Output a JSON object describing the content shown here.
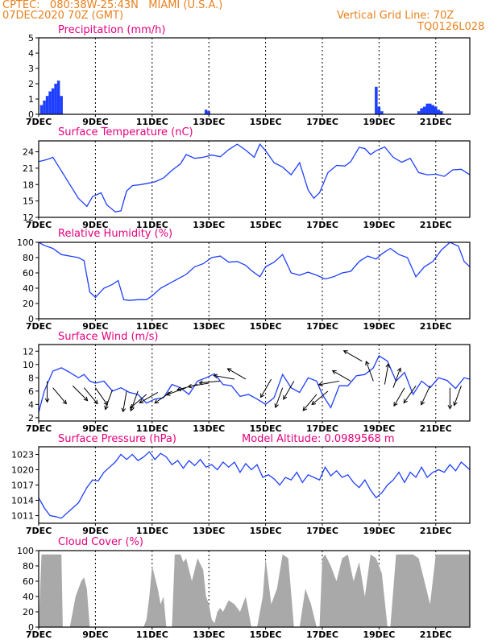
{
  "header": {
    "line1_left": "CPTEC:   080:38W-25:43N   MIAMI (U.S.A.)",
    "line2_left": "07DEC2020 70Z (GMT)",
    "line1_right": "Vertical Grid Line: 70Z",
    "line2_right": "TQ0126L028"
  },
  "colors": {
    "header": "#e8801e",
    "title": "#e6007e",
    "line": "#1f3fff",
    "bar": "#1f3fff",
    "cloud": "#a9a9a9",
    "arrow": "#000000"
  },
  "x_axis": {
    "ticks": [
      "7DEC",
      "9DEC",
      "11DEC",
      "13DEC",
      "15DEC",
      "17DEC",
      "19DEC",
      "21DEC"
    ],
    "tick_days": [
      7,
      9,
      11,
      13,
      15,
      17,
      19,
      21
    ],
    "range": [
      7,
      22.2
    ]
  },
  "chart_data": [
    {
      "id": "precip",
      "type": "bar",
      "title": "Precipitation (mm/h)",
      "ylim": [
        0,
        5
      ],
      "yticks": [
        "0",
        "1",
        "2",
        "3",
        "4",
        "5"
      ],
      "x": [
        7.1,
        7.2,
        7.3,
        7.4,
        7.5,
        7.6,
        7.7,
        7.8,
        12.9,
        13.0,
        18.9,
        19.0,
        19.1,
        20.4,
        20.5,
        20.6,
        20.7,
        20.8,
        20.9,
        21.0,
        21.1,
        21.2
      ],
      "values": [
        0.6,
        0.9,
        1.2,
        1.5,
        1.7,
        2.0,
        2.2,
        1.2,
        0.3,
        0.2,
        1.8,
        0.5,
        0.2,
        0.2,
        0.4,
        0.5,
        0.7,
        0.7,
        0.6,
        0.5,
        0.3,
        0.2
      ]
    },
    {
      "id": "temp",
      "type": "line",
      "title": "Surface Temperature (nC)",
      "ylim": [
        12,
        26
      ],
      "yticks": [
        "12",
        "15",
        "18",
        "21",
        "24"
      ],
      "x": [
        7.0,
        7.3,
        7.5,
        7.8,
        8.1,
        8.4,
        8.7,
        8.9,
        9.2,
        9.4,
        9.7,
        9.9,
        10.1,
        10.3,
        10.6,
        10.9,
        11.1,
        11.4,
        11.7,
        12.0,
        12.2,
        12.5,
        12.8,
        13.1,
        13.4,
        13.7,
        14.0,
        14.3,
        14.6,
        14.8,
        15.0,
        15.3,
        15.6,
        15.9,
        16.2,
        16.5,
        16.7,
        16.9,
        17.2,
        17.5,
        17.8,
        18.0,
        18.3,
        18.5,
        18.7,
        18.9,
        19.2,
        19.5,
        19.8,
        20.1,
        20.4,
        20.7,
        21.0,
        21.3,
        21.6,
        21.9,
        22.2
      ],
      "values": [
        22.2,
        22.6,
        23.0,
        20.5,
        18.0,
        15.5,
        14.0,
        15.8,
        16.5,
        14.3,
        13.0,
        13.2,
        16.8,
        17.8,
        18.0,
        18.3,
        18.5,
        19.2,
        20.6,
        21.8,
        23.5,
        22.8,
        23.0,
        23.4,
        23.1,
        24.4,
        25.4,
        24.3,
        23.0,
        25.4,
        24.2,
        22.0,
        21.2,
        19.8,
        22.0,
        17.0,
        15.5,
        16.5,
        20.2,
        21.5,
        21.4,
        22.2,
        24.8,
        24.6,
        23.5,
        24.2,
        24.9,
        23.0,
        22.1,
        22.8,
        20.2,
        19.8,
        19.9,
        19.5,
        20.7,
        20.8,
        19.8
      ]
    },
    {
      "id": "rh",
      "type": "line",
      "title": "Relative Humidity (%)",
      "ylim": [
        0,
        100
      ],
      "yticks": [
        "0",
        "20",
        "40",
        "60",
        "80",
        "100"
      ],
      "x": [
        7.0,
        7.2,
        7.5,
        7.8,
        8.1,
        8.4,
        8.6,
        8.8,
        9.0,
        9.3,
        9.6,
        9.8,
        10.0,
        10.2,
        10.5,
        10.8,
        11.0,
        11.3,
        11.6,
        11.9,
        12.2,
        12.5,
        12.8,
        13.1,
        13.4,
        13.7,
        14.0,
        14.3,
        14.5,
        14.8,
        15.0,
        15.3,
        15.6,
        15.9,
        16.2,
        16.5,
        16.8,
        17.1,
        17.4,
        17.7,
        18.0,
        18.3,
        18.6,
        18.9,
        19.1,
        19.4,
        19.7,
        20.0,
        20.3,
        20.6,
        20.9,
        21.2,
        21.5,
        21.8,
        22.0,
        22.2
      ],
      "values": [
        100,
        96,
        92,
        84,
        82,
        80,
        76,
        35,
        28,
        40,
        45,
        50,
        25,
        24,
        25,
        25,
        30,
        40,
        46,
        52,
        58,
        68,
        72,
        80,
        82,
        74,
        75,
        70,
        63,
        55,
        68,
        74,
        84,
        60,
        57,
        61,
        57,
        52,
        55,
        60,
        62,
        75,
        82,
        78,
        85,
        92,
        84,
        80,
        55,
        68,
        75,
        90,
        100,
        95,
        75,
        68
      ]
    },
    {
      "id": "wind",
      "type": "line",
      "title": "Surface Wind (m/s)",
      "ylim": [
        1.5,
        13
      ],
      "yticks": [
        "2",
        "4",
        "6",
        "8",
        "10",
        "12"
      ],
      "x": [
        7.0,
        7.2,
        7.5,
        7.8,
        8.1,
        8.4,
        8.6,
        8.8,
        9.0,
        9.3,
        9.6,
        9.9,
        10.2,
        10.5,
        10.8,
        11.1,
        11.4,
        11.7,
        12.0,
        12.3,
        12.6,
        12.9,
        13.2,
        13.5,
        13.8,
        14.1,
        14.4,
        14.7,
        15.0,
        15.3,
        15.6,
        15.9,
        16.2,
        16.5,
        16.8,
        17.0,
        17.3,
        17.6,
        17.9,
        18.2,
        18.5,
        18.8,
        19.0,
        19.3,
        19.6,
        19.9,
        20.2,
        20.5,
        20.8,
        21.1,
        21.4,
        21.7,
        22.0,
        22.2
      ],
      "values": [
        2.8,
        6.0,
        9.0,
        9.5,
        8.8,
        8.0,
        8.5,
        7.5,
        7.2,
        7.5,
        6.0,
        6.5,
        5.8,
        5.5,
        4.2,
        4.8,
        5.0,
        7.0,
        6.5,
        5.5,
        7.5,
        8.0,
        8.6,
        7.0,
        6.8,
        5.2,
        5.5,
        4.8,
        4.0,
        5.0,
        8.5,
        6.5,
        5.8,
        8.0,
        7.5,
        5.5,
        3.5,
        6.8,
        6.8,
        8.3,
        8.5,
        9.5,
        11.3,
        10.5,
        7.5,
        8.8,
        5.5,
        7.5,
        6.5,
        8.0,
        7.6,
        6.4,
        8.0,
        7.8
      ],
      "arrows": [
        {
          "x": 7.3,
          "y": 7.5,
          "dir": 180
        },
        {
          "x": 7.5,
          "y": 6.5,
          "dir": 140
        },
        {
          "x": 8.2,
          "y": 6.8,
          "dir": 135
        },
        {
          "x": 8.6,
          "y": 6.5,
          "dir": 140
        },
        {
          "x": 9.0,
          "y": 6.5,
          "dir": 145
        },
        {
          "x": 9.6,
          "y": 6.2,
          "dir": 200
        },
        {
          "x": 10.1,
          "y": 6.0,
          "dir": 190
        },
        {
          "x": 10.5,
          "y": 6.0,
          "dir": 200
        },
        {
          "x": 10.8,
          "y": 5.5,
          "dir": 230
        },
        {
          "x": 11.2,
          "y": 5.8,
          "dir": 240
        },
        {
          "x": 11.7,
          "y": 6.0,
          "dir": 235
        },
        {
          "x": 12.2,
          "y": 6.5,
          "dir": 250
        },
        {
          "x": 12.6,
          "y": 7.0,
          "dir": 255
        },
        {
          "x": 13.0,
          "y": 7.2,
          "dir": 260
        },
        {
          "x": 13.4,
          "y": 7.5,
          "dir": 265
        },
        {
          "x": 13.9,
          "y": 7.8,
          "dir": 280
        },
        {
          "x": 14.3,
          "y": 7.8,
          "dir": 300
        },
        {
          "x": 15.2,
          "y": 7.8,
          "dir": 210
        },
        {
          "x": 15.6,
          "y": 6.5,
          "dir": 200
        },
        {
          "x": 16.0,
          "y": 7.5,
          "dir": 210
        },
        {
          "x": 16.8,
          "y": 5.5,
          "dir": 220
        },
        {
          "x": 17.2,
          "y": 6.0,
          "dir": 230
        },
        {
          "x": 17.6,
          "y": 7.5,
          "dir": 260
        },
        {
          "x": 18.0,
          "y": 7.5,
          "dir": 300
        },
        {
          "x": 18.4,
          "y": 10.5,
          "dir": 300
        },
        {
          "x": 18.8,
          "y": 7.5,
          "dir": 340
        },
        {
          "x": 19.2,
          "y": 7.0,
          "dir": 10
        },
        {
          "x": 19.5,
          "y": 6.5,
          "dir": 20
        },
        {
          "x": 19.9,
          "y": 6.5,
          "dir": 210
        },
        {
          "x": 20.3,
          "y": 6.8,
          "dir": 215
        },
        {
          "x": 20.8,
          "y": 6.8,
          "dir": 205
        },
        {
          "x": 21.5,
          "y": 6.5,
          "dir": 180
        },
        {
          "x": 21.9,
          "y": 6.8,
          "dir": 200
        }
      ]
    },
    {
      "id": "pres",
      "type": "line",
      "title": "Surface Pressure (hPa)",
      "annotation": "Model Altitude: 0.0989568 m",
      "ylim": [
        1009.5,
        1024.5
      ],
      "yticks": [
        "1011",
        "1014",
        "1017",
        "1020",
        "1023"
      ],
      "x": [
        7.0,
        7.2,
        7.4,
        7.6,
        7.8,
        8.0,
        8.2,
        8.4,
        8.7,
        8.9,
        9.1,
        9.3,
        9.5,
        9.7,
        9.9,
        10.1,
        10.3,
        10.5,
        10.7,
        10.9,
        11.1,
        11.3,
        11.5,
        11.7,
        11.9,
        12.1,
        12.3,
        12.5,
        12.7,
        12.9,
        13.1,
        13.3,
        13.5,
        13.7,
        13.9,
        14.1,
        14.3,
        14.5,
        14.7,
        14.9,
        15.1,
        15.3,
        15.5,
        15.7,
        15.9,
        16.1,
        16.3,
        16.5,
        16.7,
        16.9,
        17.1,
        17.3,
        17.5,
        17.7,
        17.9,
        18.1,
        18.3,
        18.5,
        18.7,
        18.9,
        19.1,
        19.3,
        19.5,
        19.7,
        19.9,
        20.1,
        20.3,
        20.5,
        20.7,
        20.9,
        21.1,
        21.3,
        21.5,
        21.7,
        21.9,
        22.2
      ],
      "values": [
        1014.5,
        1012.5,
        1011.0,
        1010.8,
        1010.5,
        1011.5,
        1012.5,
        1013.5,
        1016.5,
        1018.0,
        1017.8,
        1019.5,
        1020.5,
        1021.5,
        1023.0,
        1022.0,
        1023.0,
        1021.8,
        1022.5,
        1023.5,
        1022.0,
        1023.2,
        1022.5,
        1021.0,
        1021.8,
        1020.3,
        1021.8,
        1020.8,
        1022.0,
        1020.5,
        1021.0,
        1020.0,
        1021.5,
        1020.5,
        1021.5,
        1019.5,
        1021.2,
        1020.0,
        1021.0,
        1018.5,
        1019.0,
        1018.2,
        1017.0,
        1018.5,
        1018.0,
        1019.5,
        1017.5,
        1019.0,
        1018.5,
        1018.0,
        1020.5,
        1018.8,
        1019.8,
        1018.5,
        1019.0,
        1017.5,
        1016.5,
        1018.0,
        1016.0,
        1014.5,
        1015.5,
        1017.0,
        1018.0,
        1019.5,
        1017.5,
        1019.5,
        1018.5,
        1020.5,
        1018.5,
        1019.5,
        1020.0,
        1019.5,
        1021.0,
        1019.8,
        1021.5,
        1020.0
      ]
    },
    {
      "id": "cloud",
      "type": "area",
      "title": "Cloud Cover (%)",
      "ylim": [
        0,
        100
      ],
      "yticks": [
        "0",
        "20",
        "40",
        "60",
        "80",
        "100"
      ],
      "x": [
        7.0,
        7.1,
        7.8,
        7.85,
        8.1,
        8.3,
        8.5,
        8.6,
        8.7,
        8.8,
        10.7,
        10.8,
        10.9,
        11.0,
        11.2,
        11.3,
        11.4,
        11.5,
        11.6,
        11.7,
        11.8,
        12.0,
        12.1,
        12.2,
        12.4,
        12.6,
        12.8,
        12.9,
        13.0,
        13.1,
        13.2,
        13.3,
        13.4,
        13.5,
        13.7,
        13.9,
        14.1,
        14.3,
        14.5,
        14.6,
        14.7,
        14.9,
        15.0,
        15.2,
        15.4,
        15.6,
        15.8,
        16.0,
        16.2,
        16.4,
        16.6,
        16.8,
        16.9,
        17.0,
        17.1,
        17.3,
        17.5,
        17.7,
        17.9,
        18.1,
        18.3,
        18.5,
        18.7,
        18.9,
        19.1,
        19.3,
        19.4,
        19.6,
        19.8,
        20.0,
        20.2,
        20.4,
        20.6,
        20.8,
        21.0,
        21.2,
        21.4,
        21.6,
        21.8,
        22.0,
        22.2
      ],
      "values": [
        0,
        95,
        95,
        0,
        0,
        40,
        60,
        65,
        50,
        0,
        0,
        10,
        40,
        80,
        50,
        30,
        40,
        0,
        0,
        0,
        95,
        95,
        85,
        90,
        60,
        90,
        75,
        40,
        30,
        10,
        5,
        20,
        25,
        20,
        35,
        30,
        20,
        40,
        0,
        0,
        0,
        40,
        90,
        30,
        50,
        95,
        90,
        0,
        0,
        50,
        30,
        0,
        0,
        90,
        95,
        80,
        60,
        90,
        95,
        60,
        85,
        40,
        95,
        90,
        70,
        0,
        0,
        95,
        95,
        95,
        95,
        90,
        60,
        30,
        95,
        95,
        95,
        95,
        95,
        95,
        95
      ]
    }
  ]
}
